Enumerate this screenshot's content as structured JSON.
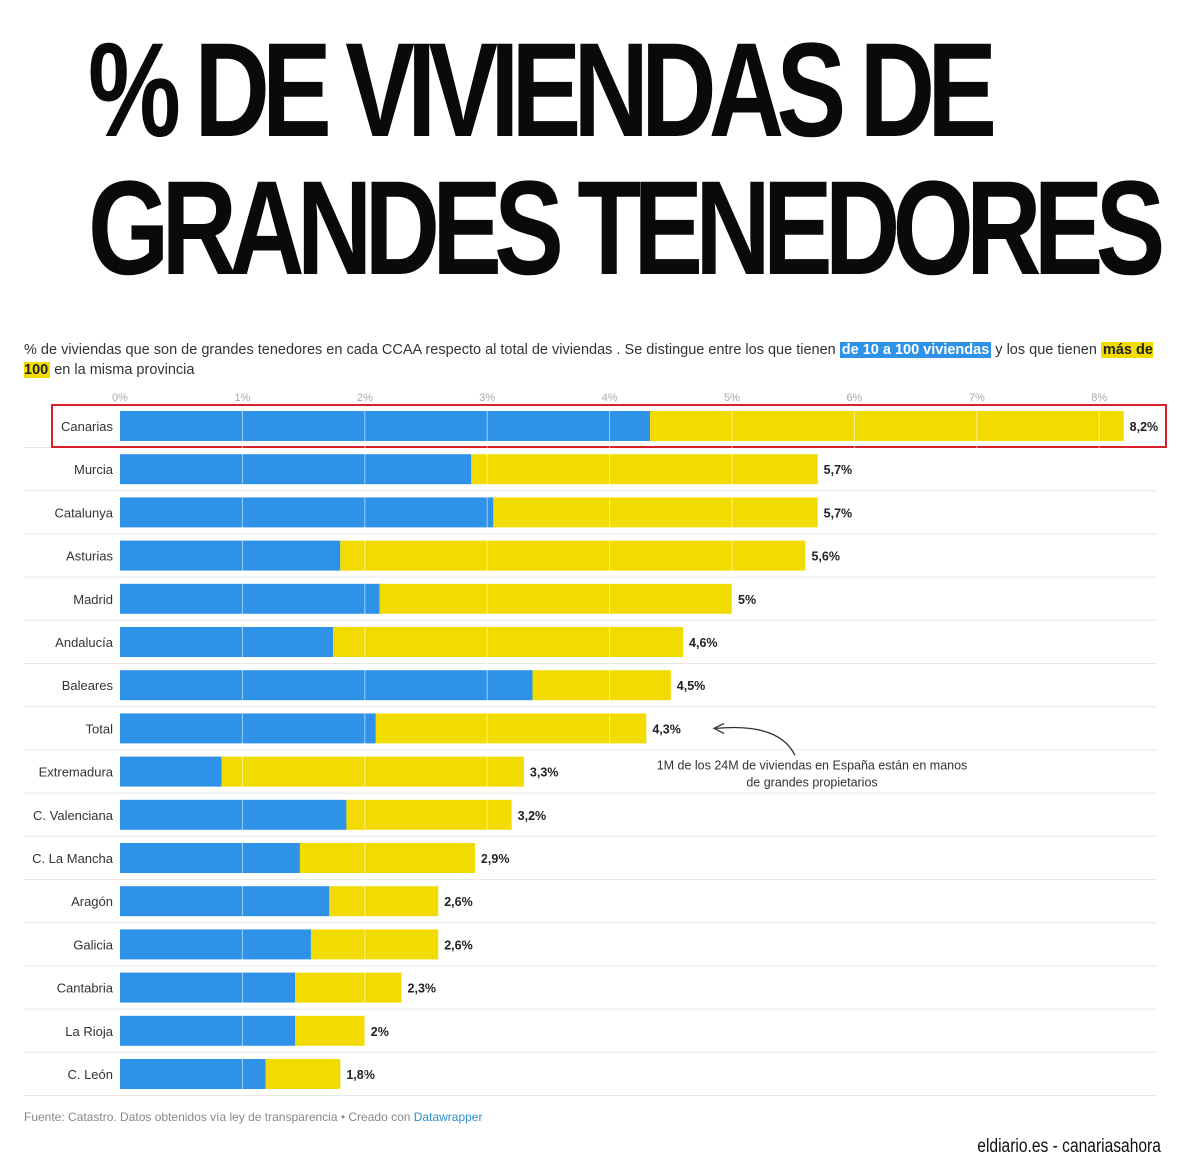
{
  "headline": {
    "line1": "% DE VIVIENDAS DE",
    "line2": "GRANDES TENEDORES"
  },
  "subtitle": {
    "part1": "% de viviendas que son de grandes tenedores en cada CCAA respecto al total de viviendas . Se distingue entre los que tienen ",
    "highlight_blue": "de 10 a 100 viviendas",
    "part2": " y los que tienen ",
    "highlight_yellow": "más de 100",
    "part3": " en la misma provincia"
  },
  "colors": {
    "series_10_100": "#2e93e8",
    "series_more_100": "#f2dc00",
    "highlight_box": "#d8202a",
    "gridline": "#e6e6e6"
  },
  "chart_data": {
    "type": "bar",
    "orientation": "horizontal",
    "stacked": true,
    "x_ticks": [
      "0%",
      "1%",
      "2%",
      "3%",
      "4%",
      "5%",
      "6%",
      "7%",
      "8%"
    ],
    "xlim": [
      0,
      8.5
    ],
    "categories": [
      "Canarias",
      "Murcia",
      "Catalunya",
      "Asturias",
      "Madrid",
      "Andalucía",
      "Baleares",
      "Total",
      "Extremadura",
      "C. Valenciana",
      "C. La Mancha",
      "Aragón",
      "Galicia",
      "Cantabria",
      "La Rioja",
      "C. León"
    ],
    "series": [
      {
        "key": "de_10_a_100",
        "values": [
          4.33,
          2.87,
          3.05,
          1.8,
          2.12,
          1.74,
          3.37,
          2.09,
          0.83,
          1.85,
          1.47,
          1.71,
          1.56,
          1.43,
          1.43,
          1.19
        ]
      },
      {
        "key": "mas_de_100",
        "values": [
          3.87,
          2.83,
          2.65,
          3.8,
          2.88,
          2.86,
          1.13,
          2.21,
          2.47,
          1.35,
          1.43,
          0.89,
          1.04,
          0.87,
          0.57,
          0.61
        ]
      }
    ],
    "total_labels": [
      "8,2%",
      "5,7%",
      "5,7%",
      "5,6%",
      "5%",
      "4,6%",
      "4,5%",
      "4,3%",
      "3,3%",
      "3,2%",
      "2,9%",
      "2,6%",
      "2,6%",
      "2,3%",
      "2%",
      "1,8%"
    ],
    "highlighted_category": "Canarias",
    "annotation": {
      "category": "Total",
      "line1": "1M de los 24M de viviendas en España están en manos",
      "line2": "de grandes propietarios"
    }
  },
  "footer": {
    "source_text": "Fuente: Catastro. Datos obtenidos vía ley de transparencia • Creado con ",
    "source_link": "Datawrapper",
    "brand": "eldiario.es - canariasahora"
  }
}
